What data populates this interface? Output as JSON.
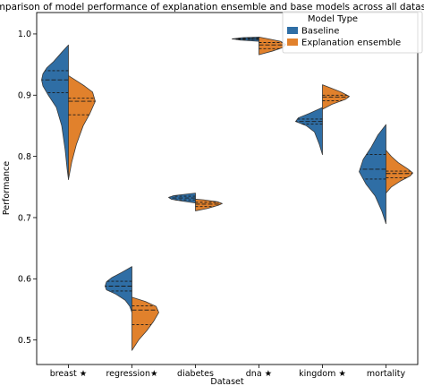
{
  "chart_data": {
    "type": "violin",
    "title": "Comparison of model performance of explanation ensemble and base models across all datasets",
    "xlabel": "Dataset",
    "ylabel": "Performance",
    "categories": [
      "breast ★",
      "regression★",
      "diabetes",
      "dna ★",
      "kingdom ★",
      "mortality"
    ],
    "ylim": [
      0.46,
      1.035
    ],
    "yticks": [
      0.5,
      0.6,
      0.7,
      0.8,
      0.9,
      1.0
    ],
    "ytick_labels": [
      "0.5",
      "0.6",
      "0.7",
      "0.8",
      "0.9",
      "1.0"
    ],
    "grid": false,
    "legend": {
      "title": "Model Type",
      "position": "top-right",
      "entries": [
        "Baseline",
        "Explanation ensemble"
      ]
    },
    "series": [
      {
        "name": "Baseline",
        "color": "#2f6ea5",
        "violins": [
          {
            "min": 0.763,
            "max": 0.982,
            "q1": 0.904,
            "median": 0.925,
            "q3": 0.94,
            "profile": [
              [
                0.763,
                0.0
              ],
              [
                0.78,
                0.05
              ],
              [
                0.81,
                0.12
              ],
              [
                0.85,
                0.25
              ],
              [
                0.88,
                0.45
              ],
              [
                0.9,
                0.75
              ],
              [
                0.915,
                0.95
              ],
              [
                0.925,
                1.0
              ],
              [
                0.935,
                0.95
              ],
              [
                0.945,
                0.8
              ],
              [
                0.955,
                0.55
              ],
              [
                0.97,
                0.25
              ],
              [
                0.982,
                0.0
              ]
            ]
          },
          {
            "min": 0.545,
            "max": 0.62,
            "q1": 0.58,
            "median": 0.588,
            "q3": 0.596,
            "profile": [
              [
                0.545,
                0.0
              ],
              [
                0.555,
                0.08
              ],
              [
                0.565,
                0.25
              ],
              [
                0.575,
                0.6
              ],
              [
                0.582,
                0.95
              ],
              [
                0.588,
                1.0
              ],
              [
                0.595,
                0.95
              ],
              [
                0.602,
                0.75
              ],
              [
                0.61,
                0.4
              ],
              [
                0.615,
                0.2
              ],
              [
                0.62,
                0.0
              ]
            ]
          },
          {
            "min": 0.724,
            "max": 0.74,
            "q1": 0.729,
            "median": 0.732,
            "q3": 0.735,
            "profile": [
              [
                0.724,
                0.0
              ],
              [
                0.727,
                0.5
              ],
              [
                0.73,
                0.9
              ],
              [
                0.733,
                1.0
              ],
              [
                0.736,
                0.8
              ],
              [
                0.738,
                0.4
              ],
              [
                0.74,
                0.0
              ]
            ]
          },
          {
            "min": 0.988,
            "max": 0.995,
            "q1": 0.991,
            "median": 0.992,
            "q3": 0.993,
            "profile": [
              [
                0.988,
                0.0
              ],
              [
                0.99,
                0.7
              ],
              [
                0.992,
                1.0
              ],
              [
                0.994,
                0.6
              ],
              [
                0.995,
                0.0
              ]
            ]
          },
          {
            "min": 0.803,
            "max": 0.88,
            "q1": 0.853,
            "median": 0.857,
            "q3": 0.861,
            "profile": [
              [
                0.803,
                0.0
              ],
              [
                0.82,
                0.12
              ],
              [
                0.84,
                0.3
              ],
              [
                0.85,
                0.6
              ],
              [
                0.857,
                1.0
              ],
              [
                0.863,
                0.9
              ],
              [
                0.87,
                0.5
              ],
              [
                0.875,
                0.25
              ],
              [
                0.88,
                0.0
              ]
            ]
          },
          {
            "min": 0.69,
            "max": 0.852,
            "q1": 0.763,
            "median": 0.779,
            "q3": 0.803,
            "profile": [
              [
                0.69,
                0.0
              ],
              [
                0.71,
                0.15
              ],
              [
                0.735,
                0.4
              ],
              [
                0.755,
                0.75
              ],
              [
                0.775,
                1.0
              ],
              [
                0.795,
                0.85
              ],
              [
                0.815,
                0.55
              ],
              [
                0.835,
                0.3
              ],
              [
                0.852,
                0.0
              ]
            ]
          }
        ]
      },
      {
        "name": "Explanation ensemble",
        "color": "#e1812c",
        "violins": [
          {
            "min": 0.762,
            "max": 0.932,
            "q1": 0.868,
            "median": 0.89,
            "q3": 0.895,
            "profile": [
              [
                0.762,
                0.0
              ],
              [
                0.79,
                0.12
              ],
              [
                0.82,
                0.3
              ],
              [
                0.85,
                0.55
              ],
              [
                0.87,
                0.8
              ],
              [
                0.89,
                1.0
              ],
              [
                0.905,
                0.9
              ],
              [
                0.915,
                0.6
              ],
              [
                0.925,
                0.25
              ],
              [
                0.932,
                0.0
              ]
            ]
          },
          {
            "min": 0.483,
            "max": 0.57,
            "q1": 0.525,
            "median": 0.549,
            "q3": 0.556,
            "profile": [
              [
                0.483,
                0.0
              ],
              [
                0.5,
                0.25
              ],
              [
                0.515,
                0.55
              ],
              [
                0.53,
                0.8
              ],
              [
                0.545,
                1.0
              ],
              [
                0.555,
                0.9
              ],
              [
                0.563,
                0.5
              ],
              [
                0.57,
                0.0
              ]
            ]
          },
          {
            "min": 0.711,
            "max": 0.73,
            "q1": 0.718,
            "median": 0.722,
            "q3": 0.725,
            "profile": [
              [
                0.711,
                0.0
              ],
              [
                0.715,
                0.45
              ],
              [
                0.72,
                0.85
              ],
              [
                0.723,
                1.0
              ],
              [
                0.726,
                0.8
              ],
              [
                0.729,
                0.3
              ],
              [
                0.73,
                0.0
              ]
            ]
          },
          {
            "min": 0.966,
            "max": 0.995,
            "q1": 0.976,
            "median": 0.982,
            "q3": 0.986,
            "profile": [
              [
                0.966,
                0.0
              ],
              [
                0.972,
                0.5
              ],
              [
                0.978,
                0.9
              ],
              [
                0.983,
                1.0
              ],
              [
                0.988,
                0.8
              ],
              [
                0.992,
                0.35
              ],
              [
                0.995,
                0.0
              ]
            ]
          },
          {
            "min": 0.877,
            "max": 0.917,
            "q1": 0.891,
            "median": 0.897,
            "q3": 0.9,
            "profile": [
              [
                0.877,
                0.0
              ],
              [
                0.885,
                0.35
              ],
              [
                0.893,
                0.85
              ],
              [
                0.898,
                1.0
              ],
              [
                0.905,
                0.7
              ],
              [
                0.912,
                0.3
              ],
              [
                0.917,
                0.0
              ]
            ]
          },
          {
            "min": 0.74,
            "max": 0.81,
            "q1": 0.765,
            "median": 0.772,
            "q3": 0.776,
            "profile": [
              [
                0.74,
                0.0
              ],
              [
                0.75,
                0.2
              ],
              [
                0.76,
                0.55
              ],
              [
                0.768,
                0.9
              ],
              [
                0.773,
                1.0
              ],
              [
                0.78,
                0.8
              ],
              [
                0.79,
                0.45
              ],
              [
                0.8,
                0.2
              ],
              [
                0.81,
                0.0
              ]
            ]
          }
        ]
      }
    ]
  }
}
